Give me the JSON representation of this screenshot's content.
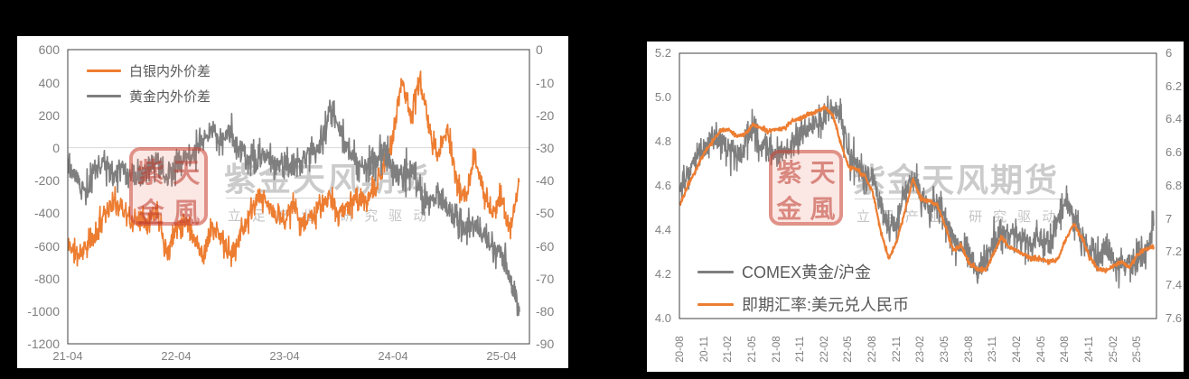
{
  "watermark": {
    "brand": "紫金天风期货",
    "tagline": "立足产业 研究驱动",
    "seal_chars": [
      "紫",
      "天",
      "金",
      "風"
    ],
    "seal_color": "#c23b2d",
    "text_color": "#8c8c8c"
  },
  "colors": {
    "orange": "#ED7D31",
    "gray": "#7F7F7F",
    "tick_text": "#808080",
    "legend_text": "#595959",
    "plot_border": "#404040",
    "gridline": "#d9d9d9",
    "panel_bg": "#ffffff",
    "page_bg": "#000000"
  },
  "chart_data": [
    {
      "type": "line",
      "frequency": "monthly",
      "x_range": {
        "start": "2021-04",
        "end": "2025-06"
      },
      "legend_position": "top-left",
      "axes": {
        "left": {
          "top": 600,
          "bottom": -1200,
          "ticks": [
            "600",
            "400",
            "200",
            "0",
            "-200",
            "-400",
            "-600",
            "-800",
            "-1000",
            "-1200"
          ]
        },
        "right": {
          "top": 0,
          "bottom": -90,
          "ticks": [
            "0",
            "-10",
            "-20",
            "-30",
            "-40",
            "-50",
            "-60",
            "-70",
            "-80",
            "-90"
          ]
        }
      },
      "gridlines": [
        {
          "axis": "left",
          "value": 0
        }
      ],
      "x_ticks": [
        {
          "index": 0,
          "label": "21-04"
        },
        {
          "index": 12,
          "label": "22-04"
        },
        {
          "index": 24,
          "label": "23-04"
        },
        {
          "index": 36,
          "label": "24-04"
        },
        {
          "index": 48,
          "label": "25-04"
        }
      ],
      "series": [
        {
          "name": "白银内外价差",
          "color": "#ED7D31",
          "axis": "left",
          "values": [
            -580,
            -655,
            -605,
            -545,
            -395,
            -340,
            -355,
            -465,
            -420,
            -430,
            -390,
            -655,
            -490,
            -440,
            -550,
            -655,
            -490,
            -555,
            -665,
            -540,
            -430,
            -310,
            -340,
            -420,
            -430,
            -360,
            -465,
            -420,
            -360,
            -310,
            -405,
            -360,
            -310,
            -330,
            -260,
            -120,
            60,
            430,
            180,
            420,
            120,
            -60,
            130,
            -200,
            -320,
            -70,
            -250,
            -400,
            -300,
            -520,
            -200
          ]
        },
        {
          "name": "黄金内外价差",
          "color": "#7F7F7F",
          "axis": "right",
          "values": [
            -36,
            -39,
            -44,
            -37,
            -35,
            -39,
            -37,
            -40,
            -38,
            -36,
            -33,
            -39,
            -36,
            -34,
            -31,
            -27,
            -24,
            -28,
            -26,
            -31,
            -35,
            -34,
            -32,
            -36,
            -34,
            -36,
            -34,
            -31,
            -29,
            -18,
            -24,
            -31,
            -34,
            -35,
            -34,
            -31,
            -37,
            -39,
            -36,
            -44,
            -47,
            -44,
            -48,
            -52,
            -55,
            -53,
            -57,
            -60,
            -63,
            -70,
            -78
          ]
        }
      ]
    },
    {
      "type": "line",
      "frequency": "monthly",
      "x_range": {
        "start": "2020-08",
        "end": "2025-07"
      },
      "legend_position": "bottom-left",
      "axes": {
        "left": {
          "top": 5.2,
          "bottom": 4.0,
          "ticks": [
            "5.2",
            "5.0",
            "4.8",
            "4.6",
            "4.4",
            "4.2",
            "4.0"
          ]
        },
        "right": {
          "top": 6,
          "bottom": 7.6,
          "inverted": true,
          "ticks": [
            "6",
            "6.2",
            "6.4",
            "6.6",
            "6.8",
            "7",
            "7.2",
            "7.4",
            "7.6"
          ]
        }
      },
      "gridlines": [],
      "x_ticks": [
        {
          "index": 0,
          "label": "20-08"
        },
        {
          "index": 3,
          "label": "20-11"
        },
        {
          "index": 6,
          "label": "21-02"
        },
        {
          "index": 9,
          "label": "21-05"
        },
        {
          "index": 12,
          "label": "21-08"
        },
        {
          "index": 15,
          "label": "21-11"
        },
        {
          "index": 18,
          "label": "22-02"
        },
        {
          "index": 21,
          "label": "22-05"
        },
        {
          "index": 24,
          "label": "22-08"
        },
        {
          "index": 27,
          "label": "22-11"
        },
        {
          "index": 30,
          "label": "23-02"
        },
        {
          "index": 33,
          "label": "23-05"
        },
        {
          "index": 36,
          "label": "23-08"
        },
        {
          "index": 39,
          "label": "23-11"
        },
        {
          "index": 42,
          "label": "24-02"
        },
        {
          "index": 45,
          "label": "24-05"
        },
        {
          "index": 48,
          "label": "24-08"
        },
        {
          "index": 51,
          "label": "24-11"
        },
        {
          "index": 54,
          "label": "25-02"
        },
        {
          "index": 57,
          "label": "25-05"
        }
      ],
      "series": [
        {
          "name": "COMEX黄金/沪金",
          "color": "#7F7F7F",
          "axis": "left",
          "values": [
            4.62,
            4.66,
            4.73,
            4.77,
            4.8,
            4.81,
            4.77,
            4.73,
            4.79,
            4.84,
            4.79,
            4.77,
            4.74,
            4.76,
            4.79,
            4.83,
            4.86,
            4.88,
            4.91,
            4.96,
            4.9,
            4.74,
            4.7,
            4.64,
            4.62,
            4.5,
            4.4,
            4.44,
            4.58,
            4.64,
            4.55,
            4.5,
            4.52,
            4.45,
            4.36,
            4.32,
            4.28,
            4.2,
            4.27,
            4.35,
            4.38,
            4.4,
            4.38,
            4.35,
            4.33,
            4.35,
            4.33,
            4.45,
            4.52,
            4.47,
            4.36,
            4.3,
            4.27,
            4.3,
            4.26,
            4.24,
            4.25,
            4.26,
            4.3,
            4.42
          ]
        },
        {
          "name": "即期汇率:美元兑人民币",
          "color": "#ED7D31",
          "axis": "right",
          "values": [
            6.91,
            6.79,
            6.7,
            6.6,
            6.53,
            6.47,
            6.46,
            6.5,
            6.49,
            6.43,
            6.45,
            6.47,
            6.46,
            6.45,
            6.41,
            6.39,
            6.37,
            6.35,
            6.33,
            6.37,
            6.54,
            6.69,
            6.7,
            6.74,
            6.84,
            7.08,
            7.24,
            7.13,
            6.95,
            6.76,
            6.88,
            6.89,
            6.91,
            7.04,
            7.19,
            7.16,
            7.27,
            7.3,
            7.31,
            7.21,
            7.11,
            7.17,
            7.19,
            7.22,
            7.24,
            7.24,
            7.26,
            7.25,
            7.13,
            7.03,
            7.11,
            7.23,
            7.3,
            7.31,
            7.28,
            7.26,
            7.29,
            7.21,
            7.18,
            7.17
          ]
        }
      ]
    }
  ]
}
